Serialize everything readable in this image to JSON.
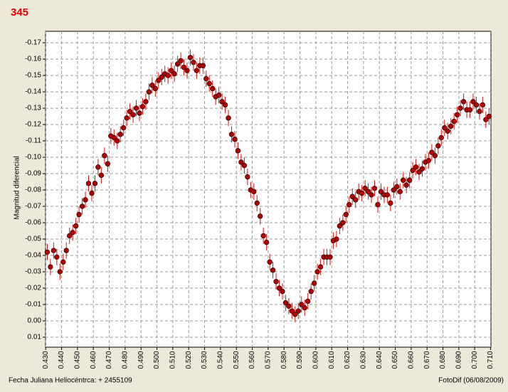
{
  "chart_data": {
    "type": "scatter",
    "title": "345",
    "ylabel": "Magnitud diferencial",
    "xlabel": "Fecha Juliana Heliocéntrca:  + 2455109",
    "footer": "FotoDif (06/08/2009)",
    "color": "#b00000",
    "error_color": "#e01010",
    "grid": true,
    "xlim": [
      0.4299,
      0.7102
    ],
    "ylim": [
      0.0161,
      -0.177
    ],
    "xticks": [
      {
        "value": 0.43,
        "label": "0.430"
      },
      {
        "value": 0.44,
        "label": "0.440"
      },
      {
        "value": 0.45,
        "label": "0.450"
      },
      {
        "value": 0.46,
        "label": "0.460"
      },
      {
        "value": 0.47,
        "label": "0.470"
      },
      {
        "value": 0.48,
        "label": "0.480"
      },
      {
        "value": 0.49,
        "label": "0.490"
      },
      {
        "value": 0.5,
        "label": "0.500"
      },
      {
        "value": 0.51,
        "label": "0.510"
      },
      {
        "value": 0.52,
        "label": "0.520"
      },
      {
        "value": 0.53,
        "label": "0.530"
      },
      {
        "value": 0.54,
        "label": "0.540"
      },
      {
        "value": 0.55,
        "label": "0.550"
      },
      {
        "value": 0.56,
        "label": "0.560"
      },
      {
        "value": 0.57,
        "label": "0.570"
      },
      {
        "value": 0.58,
        "label": "0.580"
      },
      {
        "value": 0.59,
        "label": "0.590"
      },
      {
        "value": 0.6,
        "label": "0.600"
      },
      {
        "value": 0.61,
        "label": "0.610"
      },
      {
        "value": 0.62,
        "label": "0.620"
      },
      {
        "value": 0.63,
        "label": "0.630"
      },
      {
        "value": 0.64,
        "label": "0.640"
      },
      {
        "value": 0.65,
        "label": "0.650"
      },
      {
        "value": 0.66,
        "label": "0.660"
      },
      {
        "value": 0.67,
        "label": "0.670"
      },
      {
        "value": 0.68,
        "label": "0.680"
      },
      {
        "value": 0.69,
        "label": "0.690"
      },
      {
        "value": 0.7,
        "label": "0.700"
      },
      {
        "value": 0.71,
        "label": "0.710"
      }
    ],
    "yticks": [
      {
        "value": -0.17,
        "label": "-0.17"
      },
      {
        "value": -0.16,
        "label": "-0.16"
      },
      {
        "value": -0.15,
        "label": "-0.15"
      },
      {
        "value": -0.14,
        "label": "-0.14"
      },
      {
        "value": -0.13,
        "label": "-0.13"
      },
      {
        "value": -0.12,
        "label": "-0.12"
      },
      {
        "value": -0.11,
        "label": "-0.11"
      },
      {
        "value": -0.1,
        "label": "-0.10"
      },
      {
        "value": -0.09,
        "label": "-0.09"
      },
      {
        "value": -0.08,
        "label": "-0.08"
      },
      {
        "value": -0.07,
        "label": "-0.07"
      },
      {
        "value": -0.06,
        "label": "-0.06"
      },
      {
        "value": -0.05,
        "label": "-0.05"
      },
      {
        "value": -0.04,
        "label": "-0.04"
      },
      {
        "value": -0.03,
        "label": "-0.03"
      },
      {
        "value": -0.02,
        "label": "-0.02"
      },
      {
        "value": -0.01,
        "label": "-0.01"
      },
      {
        "value": 0,
        "label": "0.00"
      },
      {
        "value": 0.01,
        "label": "0.01"
      }
    ],
    "error": 0.005,
    "x": [
      0.431,
      0.433,
      0.435,
      0.437,
      0.439,
      0.441,
      0.443,
      0.445,
      0.447,
      0.449,
      0.451,
      0.453,
      0.455,
      0.457,
      0.459,
      0.461,
      0.463,
      0.465,
      0.467,
      0.469,
      0.471,
      0.473,
      0.475,
      0.477,
      0.479,
      0.481,
      0.483,
      0.485,
      0.487,
      0.489,
      0.491,
      0.493,
      0.495,
      0.497,
      0.499,
      0.501,
      0.503,
      0.505,
      0.507,
      0.509,
      0.511,
      0.513,
      0.515,
      0.517,
      0.519,
      0.521,
      0.523,
      0.525,
      0.527,
      0.529,
      0.531,
      0.533,
      0.535,
      0.537,
      0.539,
      0.541,
      0.543,
      0.545,
      0.547,
      0.549,
      0.551,
      0.553,
      0.555,
      0.557,
      0.559,
      0.561,
      0.563,
      0.565,
      0.567,
      0.569,
      0.571,
      0.573,
      0.575,
      0.577,
      0.579,
      0.581,
      0.583,
      0.585,
      0.587,
      0.589,
      0.591,
      0.593,
      0.595,
      0.597,
      0.599,
      0.601,
      0.603,
      0.605,
      0.607,
      0.609,
      0.611,
      0.613,
      0.615,
      0.617,
      0.619,
      0.621,
      0.623,
      0.625,
      0.627,
      0.629,
      0.631,
      0.633,
      0.635,
      0.637,
      0.639,
      0.641,
      0.643,
      0.645,
      0.647,
      0.649,
      0.651,
      0.653,
      0.655,
      0.657,
      0.659,
      0.661,
      0.663,
      0.665,
      0.667,
      0.669,
      0.671,
      0.673,
      0.675,
      0.677,
      0.679,
      0.681,
      0.683,
      0.685,
      0.687,
      0.689,
      0.691,
      0.693,
      0.695,
      0.697,
      0.699,
      0.701,
      0.703,
      0.705,
      0.707,
      0.709
    ],
    "values": [
      -0.042,
      -0.033,
      -0.043,
      -0.039,
      -0.03,
      -0.036,
      -0.043,
      -0.052,
      -0.054,
      -0.058,
      -0.065,
      -0.07,
      -0.074,
      -0.084,
      -0.078,
      -0.084,
      -0.094,
      -0.089,
      -0.101,
      -0.096,
      -0.113,
      -0.112,
      -0.11,
      -0.114,
      -0.118,
      -0.124,
      -0.128,
      -0.126,
      -0.13,
      -0.127,
      -0.131,
      -0.134,
      -0.14,
      -0.144,
      -0.142,
      -0.147,
      -0.149,
      -0.151,
      -0.15,
      -0.153,
      -0.151,
      -0.157,
      -0.159,
      -0.155,
      -0.153,
      -0.161,
      -0.158,
      -0.153,
      -0.156,
      -0.156,
      -0.148,
      -0.145,
      -0.142,
      -0.137,
      -0.138,
      -0.134,
      -0.132,
      -0.124,
      -0.114,
      -0.111,
      -0.104,
      -0.097,
      -0.095,
      -0.088,
      -0.08,
      -0.079,
      -0.072,
      -0.064,
      -0.052,
      -0.048,
      -0.036,
      -0.031,
      -0.024,
      -0.02,
      -0.018,
      -0.011,
      -0.009,
      -0.006,
      -0.004,
      -0.006,
      -0.01,
      -0.008,
      -0.012,
      -0.018,
      -0.023,
      -0.03,
      -0.033,
      -0.039,
      -0.039,
      -0.039,
      -0.049,
      -0.05,
      -0.058,
      -0.06,
      -0.065,
      -0.071,
      -0.076,
      -0.074,
      -0.079,
      -0.078,
      -0.081,
      -0.079,
      -0.077,
      -0.081,
      -0.071,
      -0.079,
      -0.077,
      -0.077,
      -0.072,
      -0.08,
      -0.082,
      -0.079,
      -0.086,
      -0.083,
      -0.086,
      -0.092,
      -0.094,
      -0.091,
      -0.093,
      -0.097,
      -0.098,
      -0.103,
      -0.101,
      -0.107,
      -0.112,
      -0.118,
      -0.116,
      -0.119,
      -0.122,
      -0.126,
      -0.13,
      -0.134,
      -0.129,
      -0.129,
      -0.134,
      -0.132,
      -0.128,
      -0.132,
      -0.123,
      -0.125
    ]
  }
}
